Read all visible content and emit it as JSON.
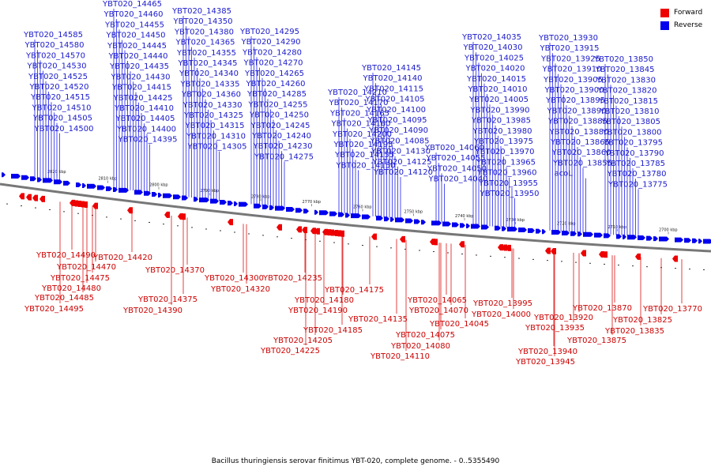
{
  "legend": {
    "forward_label": "Forward",
    "reverse_label": "Reverse",
    "forward_color": "#ee0000",
    "reverse_color": "#0000ee"
  },
  "caption": "Bacillus thuringiensis serovar finitimus YBT-020, complete genome. - 0..5355490",
  "scale": {
    "ticks": [
      "2820 kbp",
      "2810 kbp",
      "2800 kbp",
      "2790 kbp",
      "2780 kbp",
      "2770 kbp",
      "2760 kbp",
      "2750 kbp",
      "2740 kbp",
      "2730 kbp",
      "2720 kbp",
      "2710 kbp",
      "2700 kbp"
    ]
  },
  "reverse_genes": [
    "YBT020_14585",
    "YBT020_14580",
    "YBT020_14570",
    "YBT020_14530",
    "YBT020_14525",
    "YBT020_14520",
    "YBT020_14515",
    "YBT020_14510",
    "YBT020_14505",
    "YBT020_14500",
    "YBT020_14465",
    "YBT020_14460",
    "YBT020_14455",
    "YBT020_14450",
    "YBT020_14445",
    "YBT020_14440",
    "YBT020_14435",
    "YBT020_14430",
    "YBT020_14415",
    "YBT020_14425",
    "YBT020_14410",
    "YBT020_14405",
    "YBT020_14400",
    "YBT020_14395",
    "YBT020_14385",
    "YBT020_14350",
    "YBT020_14380",
    "YBT020_14365",
    "YBT020_14355",
    "YBT020_14345",
    "YBT020_14340",
    "YBT020_14335",
    "YBT020_14360",
    "YBT020_14330",
    "YBT020_14325",
    "YBT020_14315",
    "YBT020_14310",
    "YBT020_14305",
    "YBT020_14295",
    "YBT020_14290",
    "YBT020_14280",
    "YBT020_14270",
    "YBT020_14265",
    "YBT020_14260",
    "YBT020_14285",
    "YBT020_14255",
    "YBT020_14250",
    "YBT020_14245",
    "YBT020_14240",
    "YBT020_14230",
    "YBT020_14275",
    "YBT020_14210",
    "YBT020_14170",
    "YBT020_14165",
    "YBT020_14160",
    "YBT020_14200",
    "YBT020_14195",
    "YBT020_14155",
    "YBT020_14150",
    "YBT020_14145",
    "YBT020_14140",
    "YBT020_14115",
    "YBT020_14105",
    "YBT020_14100",
    "YBT020_14095",
    "YBT020_14090",
    "YBT020_14085",
    "YBT020_14130",
    "YBT020_14125",
    "YBT020_14120",
    "YBT020_14060",
    "YBT020_14055",
    "YBT020_14050",
    "YBT020_14040",
    "YBT020_14035",
    "YBT020_14030",
    "YBT020_14025",
    "YBT020_14020",
    "YBT020_14015",
    "YBT020_14010",
    "YBT020_14005",
    "YBT020_13990",
    "YBT020_13985",
    "YBT020_13980",
    "YBT020_13975",
    "YBT020_13970",
    "YBT020_13965",
    "YBT020_13960",
    "YBT020_13955",
    "YBT020_13950",
    "YBT020_13930",
    "YBT020_13915",
    "YBT020_13925",
    "YBT020_13910",
    "YBT020_13905",
    "YBT020_13900",
    "YBT020_13895",
    "YBT020_13890",
    "YBT020_13885",
    "YBT020_13880",
    "YBT020_13865",
    "YBT020_13860",
    "YBT020_13855",
    "acoL",
    "YBT020_13850",
    "YBT020_13845",
    "YBT020_13830",
    "YBT020_13820",
    "YBT020_13815",
    "YBT020_13810",
    "YBT020_13805",
    "YBT020_13800",
    "YBT020_13795",
    "YBT020_13790",
    "YBT020_13785",
    "YBT020_13780",
    "YBT020_13775"
  ],
  "forward_genes": [
    "YBT020_14490",
    "YBT020_14470",
    "YBT020_14475",
    "YBT020_14480",
    "YBT020_14485",
    "YBT020_14495",
    "YBT020_14420",
    "YBT020_14370",
    "YBT020_14375",
    "YBT020_14390",
    "YBT020_14320",
    "YBT020_14300",
    "YBT020_14235",
    "YBT020_14175",
    "YBT020_14180",
    "YBT020_14190",
    "YBT020_14185",
    "YBT020_14205",
    "YBT020_14225",
    "YBT020_14135",
    "YBT020_14110",
    "YBT020_14065",
    "YBT020_14070",
    "YBT020_14075",
    "YBT020_14080",
    "YBT020_14045",
    "YBT020_13995",
    "YBT020_14000",
    "YBT020_13920",
    "YBT020_13935",
    "YBT020_13940",
    "YBT020_13945",
    "YBT020_13870",
    "YBT020_13875",
    "YBT020_13825",
    "YBT020_13835",
    "YBT020_13770"
  ]
}
